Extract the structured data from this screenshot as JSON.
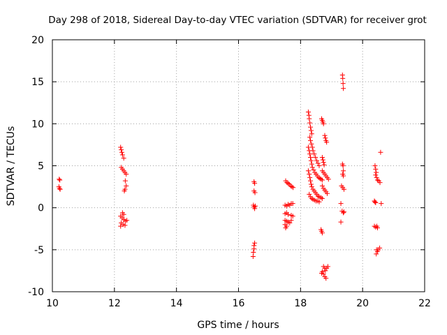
{
  "chart_data": {
    "type": "scatter",
    "title": "Day 298 of 2018, Sidereal Day-to-day VTEC variation (SDTVAR) for receiver grot",
    "xlabel": "GPS time / hours",
    "ylabel": "SDTVAR / TECUs",
    "xlim": [
      10,
      22
    ],
    "ylim": [
      -10,
      20
    ],
    "xticks": [
      10,
      12,
      14,
      16,
      18,
      20,
      22
    ],
    "yticks": [
      -10,
      -5,
      0,
      5,
      10,
      15,
      20
    ],
    "xtick_labels": [
      "10",
      "12",
      "14",
      "16",
      "18",
      "20",
      "22"
    ],
    "ytick_labels": [
      "-10",
      "-5",
      "0",
      "5",
      "10",
      "15",
      "20"
    ],
    "grid": true,
    "marker": "+",
    "color": "#ff0000",
    "series": [
      {
        "name": "SDTVAR",
        "points": [
          [
            10.22,
            3.4
          ],
          [
            10.24,
            3.3
          ],
          [
            10.21,
            2.5
          ],
          [
            10.23,
            2.3
          ],
          [
            10.25,
            2.2
          ],
          [
            12.2,
            7.2
          ],
          [
            12.22,
            6.9
          ],
          [
            12.24,
            6.6
          ],
          [
            12.26,
            6.3
          ],
          [
            12.3,
            5.9
          ],
          [
            12.22,
            4.8
          ],
          [
            12.26,
            4.6
          ],
          [
            12.3,
            4.4
          ],
          [
            12.34,
            4.2
          ],
          [
            12.38,
            4.0
          ],
          [
            12.35,
            3.2
          ],
          [
            12.38,
            2.6
          ],
          [
            12.34,
            2.2
          ],
          [
            12.32,
            2.0
          ],
          [
            12.26,
            -0.6
          ],
          [
            12.3,
            -0.8
          ],
          [
            12.2,
            -1.0
          ],
          [
            12.25,
            -1.2
          ],
          [
            12.3,
            -1.4
          ],
          [
            12.35,
            -1.6
          ],
          [
            12.4,
            -1.5
          ],
          [
            12.22,
            -1.8
          ],
          [
            12.28,
            -2.0
          ],
          [
            12.34,
            -2.1
          ],
          [
            12.2,
            -2.2
          ],
          [
            16.5,
            3.1
          ],
          [
            16.52,
            2.9
          ],
          [
            16.5,
            2.0
          ],
          [
            16.53,
            1.8
          ],
          [
            16.48,
            0.3
          ],
          [
            16.5,
            0.1
          ],
          [
            16.52,
            -0.1
          ],
          [
            16.54,
            0.2
          ],
          [
            16.52,
            -4.2
          ],
          [
            16.5,
            -4.5
          ],
          [
            16.5,
            -4.9
          ],
          [
            16.48,
            -5.3
          ],
          [
            16.47,
            -5.8
          ],
          [
            17.52,
            3.2
          ],
          [
            17.56,
            3.0
          ],
          [
            17.6,
            2.9
          ],
          [
            17.64,
            2.8
          ],
          [
            17.68,
            2.6
          ],
          [
            17.72,
            2.5
          ],
          [
            17.76,
            2.4
          ],
          [
            17.5,
            0.3
          ],
          [
            17.55,
            0.2
          ],
          [
            17.6,
            0.4
          ],
          [
            17.65,
            0.3
          ],
          [
            17.7,
            0.5
          ],
          [
            17.75,
            0.5
          ],
          [
            17.5,
            -0.7
          ],
          [
            17.55,
            -0.6
          ],
          [
            17.6,
            -0.8
          ],
          [
            17.7,
            -0.9
          ],
          [
            17.75,
            -1.0
          ],
          [
            17.5,
            -1.5
          ],
          [
            17.55,
            -1.6
          ],
          [
            17.6,
            -1.7
          ],
          [
            17.65,
            -1.8
          ],
          [
            17.7,
            -1.5
          ],
          [
            17.5,
            -2.0
          ],
          [
            17.55,
            -2.2
          ],
          [
            17.52,
            -2.4
          ],
          [
            18.25,
            11.4
          ],
          [
            18.27,
            11.0
          ],
          [
            18.28,
            10.6
          ],
          [
            18.3,
            10.1
          ],
          [
            18.32,
            9.6
          ],
          [
            18.34,
            9.2
          ],
          [
            18.36,
            8.8
          ],
          [
            18.3,
            8.4
          ],
          [
            18.32,
            8.0
          ],
          [
            18.35,
            7.6
          ],
          [
            18.38,
            7.2
          ],
          [
            18.4,
            6.8
          ],
          [
            18.44,
            6.4
          ],
          [
            18.48,
            6.0
          ],
          [
            18.52,
            5.6
          ],
          [
            18.56,
            5.3
          ],
          [
            18.6,
            5.0
          ],
          [
            18.25,
            7.2
          ],
          [
            18.28,
            6.8
          ],
          [
            18.3,
            6.4
          ],
          [
            18.32,
            6.0
          ],
          [
            18.34,
            5.6
          ],
          [
            18.36,
            5.2
          ],
          [
            18.38,
            4.8
          ],
          [
            18.42,
            4.5
          ],
          [
            18.46,
            4.2
          ],
          [
            18.5,
            4.0
          ],
          [
            18.54,
            3.8
          ],
          [
            18.58,
            3.6
          ],
          [
            18.62,
            3.5
          ],
          [
            18.66,
            3.4
          ],
          [
            18.7,
            3.3
          ],
          [
            18.25,
            4.4
          ],
          [
            18.28,
            4.0
          ],
          [
            18.3,
            3.6
          ],
          [
            18.32,
            3.2
          ],
          [
            18.34,
            2.8
          ],
          [
            18.36,
            2.5
          ],
          [
            18.4,
            2.2
          ],
          [
            18.44,
            2.0
          ],
          [
            18.48,
            1.8
          ],
          [
            18.52,
            1.6
          ],
          [
            18.56,
            1.4
          ],
          [
            18.6,
            1.3
          ],
          [
            18.66,
            1.2
          ],
          [
            18.7,
            1.1
          ],
          [
            18.28,
            1.6
          ],
          [
            18.32,
            1.3
          ],
          [
            18.36,
            1.1
          ],
          [
            18.4,
            1.0
          ],
          [
            18.45,
            0.9
          ],
          [
            18.5,
            0.8
          ],
          [
            18.55,
            0.8
          ],
          [
            18.6,
            0.7
          ],
          [
            18.68,
            10.6
          ],
          [
            18.7,
            10.4
          ],
          [
            18.72,
            10.2
          ],
          [
            18.74,
            10.0
          ],
          [
            18.78,
            8.6
          ],
          [
            18.8,
            8.3
          ],
          [
            18.82,
            8.0
          ],
          [
            18.84,
            7.8
          ],
          [
            18.7,
            6.0
          ],
          [
            18.72,
            5.7
          ],
          [
            18.74,
            5.4
          ],
          [
            18.76,
            5.1
          ],
          [
            18.7,
            4.4
          ],
          [
            18.74,
            4.2
          ],
          [
            18.78,
            4.0
          ],
          [
            18.82,
            3.8
          ],
          [
            18.86,
            3.6
          ],
          [
            18.9,
            3.4
          ],
          [
            18.7,
            2.6
          ],
          [
            18.74,
            2.3
          ],
          [
            18.78,
            2.1
          ],
          [
            18.82,
            1.9
          ],
          [
            18.86,
            1.7
          ],
          [
            18.66,
            -2.6
          ],
          [
            18.68,
            -2.8
          ],
          [
            18.7,
            -3.0
          ],
          [
            18.74,
            -7.0
          ],
          [
            18.78,
            -7.2
          ],
          [
            18.7,
            -7.6
          ],
          [
            18.74,
            -7.9
          ],
          [
            18.78,
            -8.2
          ],
          [
            18.82,
            -8.4
          ],
          [
            18.8,
            -7.5
          ],
          [
            18.84,
            -7.2
          ],
          [
            18.88,
            -7.0
          ],
          [
            18.68,
            -7.8
          ],
          [
            19.35,
            15.8
          ],
          [
            19.36,
            15.4
          ],
          [
            19.37,
            14.8
          ],
          [
            19.38,
            14.2
          ],
          [
            19.35,
            5.2
          ],
          [
            19.37,
            5.0
          ],
          [
            19.38,
            4.4
          ],
          [
            19.36,
            4.0
          ],
          [
            19.38,
            3.8
          ],
          [
            19.32,
            2.6
          ],
          [
            19.36,
            2.4
          ],
          [
            19.4,
            2.2
          ],
          [
            19.3,
            0.5
          ],
          [
            19.34,
            -0.4
          ],
          [
            19.38,
            -0.6
          ],
          [
            19.4,
            -0.5
          ],
          [
            19.3,
            -1.7
          ],
          [
            20.4,
            5.0
          ],
          [
            20.42,
            4.6
          ],
          [
            20.44,
            4.2
          ],
          [
            20.42,
            3.9
          ],
          [
            20.45,
            3.6
          ],
          [
            20.48,
            3.3
          ],
          [
            20.52,
            3.2
          ],
          [
            20.56,
            3.0
          ],
          [
            20.38,
            0.8
          ],
          [
            20.4,
            0.7
          ],
          [
            20.42,
            0.6
          ],
          [
            20.38,
            -2.2
          ],
          [
            20.42,
            -2.3
          ],
          [
            20.46,
            -2.2
          ],
          [
            20.48,
            -2.4
          ],
          [
            20.45,
            -5.0
          ],
          [
            20.48,
            -5.2
          ],
          [
            20.5,
            -5.0
          ],
          [
            20.55,
            -4.8
          ],
          [
            20.44,
            -5.5
          ],
          [
            20.58,
            6.6
          ],
          [
            20.6,
            0.5
          ]
        ]
      }
    ]
  }
}
